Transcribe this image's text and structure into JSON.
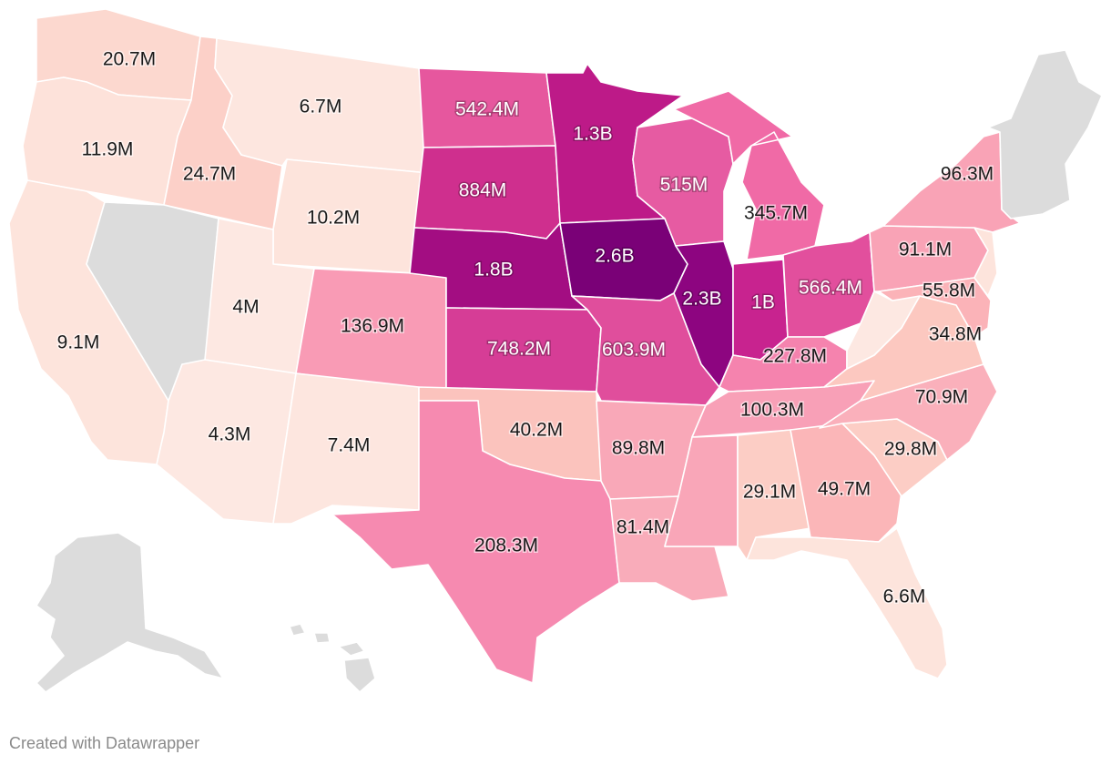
{
  "credit": "Created with Datawrapper",
  "no_data_color": "#dcdcdc",
  "palette": {
    "lowest": "#fde4dc",
    "low": "#fcccc3",
    "mid_low": "#f9a3b6",
    "mid": "#f68ab0",
    "mid_high": "#e657a1",
    "high": "#cd2e92",
    "higher": "#a5108a",
    "highest": "#7a0177"
  },
  "states": [
    {
      "id": "WA",
      "label": "20.7M",
      "value": 20700000,
      "color": "#fcd8cf"
    },
    {
      "id": "OR",
      "label": "11.9M",
      "value": 11900000,
      "color": "#fde2da"
    },
    {
      "id": "CA",
      "label": "9.1M",
      "value": 9100000,
      "color": "#fde4dc"
    },
    {
      "id": "ID",
      "label": "24.7M",
      "value": 24700000,
      "color": "#fcd0c8"
    },
    {
      "id": "NV",
      "label": "",
      "value": null,
      "color": "#dcdcdc"
    },
    {
      "id": "MT",
      "label": "6.7M",
      "value": 6700000,
      "color": "#fde6df"
    },
    {
      "id": "WY",
      "label": "10.2M",
      "value": 10200000,
      "color": "#fde4dc"
    },
    {
      "id": "UT",
      "label": "4M",
      "value": 4000000,
      "color": "#fde8e2"
    },
    {
      "id": "AZ",
      "label": "4.3M",
      "value": 4300000,
      "color": "#fde8e2"
    },
    {
      "id": "CO",
      "label": "136.9M",
      "value": 136900000,
      "color": "#f99bb5"
    },
    {
      "id": "NM",
      "label": "7.4M",
      "value": 7400000,
      "color": "#fde6df"
    },
    {
      "id": "ND",
      "label": "542.4M",
      "value": 542400000,
      "color": "#e6579e"
    },
    {
      "id": "SD",
      "label": "884M",
      "value": 884000000,
      "color": "#cf2f8e"
    },
    {
      "id": "NE",
      "label": "1.8B",
      "value": 1800000000,
      "color": "#a30d82"
    },
    {
      "id": "KS",
      "label": "748.2M",
      "value": 748200000,
      "color": "#d63d96"
    },
    {
      "id": "OK",
      "label": "40.2M",
      "value": 40200000,
      "color": "#fbc3bd"
    },
    {
      "id": "TX",
      "label": "208.3M",
      "value": 208300000,
      "color": "#f68ab0"
    },
    {
      "id": "MN",
      "label": "1.3B",
      "value": 1300000000,
      "color": "#bd1a88"
    },
    {
      "id": "IA",
      "label": "2.6B",
      "value": 2600000000,
      "color": "#7a0177"
    },
    {
      "id": "MO",
      "label": "603.9M",
      "value": 603900000,
      "color": "#e04e9c"
    },
    {
      "id": "AR",
      "label": "89.8M",
      "value": 89800000,
      "color": "#f9a8b8"
    },
    {
      "id": "LA",
      "label": "81.4M",
      "value": 81400000,
      "color": "#f9acba"
    },
    {
      "id": "WI",
      "label": "515M",
      "value": 515000000,
      "color": "#e65ba2"
    },
    {
      "id": "IL",
      "label": "2.3B",
      "value": 2300000000,
      "color": "#8d0580"
    },
    {
      "id": "MI",
      "label": "345.7M",
      "value": 345700000,
      "color": "#f06aa6"
    },
    {
      "id": "IN",
      "label": "1B",
      "value": 1000000000,
      "color": "#c8238f"
    },
    {
      "id": "OH",
      "label": "566.4M",
      "value": 566400000,
      "color": "#e24f9d"
    },
    {
      "id": "KY",
      "label": "227.8M",
      "value": 227800000,
      "color": "#f583ae"
    },
    {
      "id": "TN",
      "label": "100.3M",
      "value": 100300000,
      "color": "#f8a0b7"
    },
    {
      "id": "MS",
      "label": "",
      "value": null,
      "color": "#f9a6b8"
    },
    {
      "id": "AL",
      "label": "29.1M",
      "value": 29100000,
      "color": "#fccdc5"
    },
    {
      "id": "GA",
      "label": "49.7M",
      "value": 49700000,
      "color": "#fbb6b8"
    },
    {
      "id": "FL",
      "label": "6.6M",
      "value": 6600000,
      "color": "#fde4dc"
    },
    {
      "id": "SC",
      "label": "29.8M",
      "value": 29800000,
      "color": "#fccdc5"
    },
    {
      "id": "NC",
      "label": "70.9M",
      "value": 70900000,
      "color": "#fab0bb"
    },
    {
      "id": "VA",
      "label": "34.8M",
      "value": 34800000,
      "color": "#fcc8c0"
    },
    {
      "id": "WV",
      "label": "",
      "value": null,
      "color": "#fde8e2"
    },
    {
      "id": "PA",
      "label": "91.1M",
      "value": 91100000,
      "color": "#f9a3b6"
    },
    {
      "id": "MD",
      "label": "55.8M",
      "value": 55800000,
      "color": "#fbb3b8"
    },
    {
      "id": "NJ",
      "label": "",
      "value": null,
      "color": "#fde4dc"
    },
    {
      "id": "NY",
      "label": "96.3M",
      "value": 96300000,
      "color": "#f9a3b6"
    },
    {
      "id": "NE-states",
      "label": "",
      "value": null,
      "color": "#dcdcdc"
    },
    {
      "id": "AK",
      "label": "",
      "value": null,
      "color": "#dcdcdc"
    },
    {
      "id": "HI",
      "label": "",
      "value": null,
      "color": "#dcdcdc"
    }
  ]
}
